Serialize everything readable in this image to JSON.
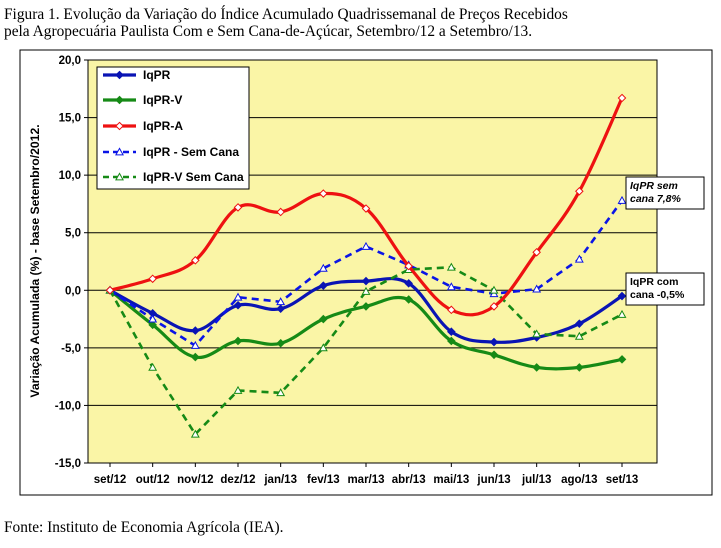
{
  "figure": {
    "caption_line1": "Figura 1. Evolução da Variação do Índice Acumulado Quadrissemanal de Preços Recebidos",
    "caption_line2": "pela Agropecuária Paulista Com e Sem Cana-de-Açúcar, Setembro/12 a Setembro/13.",
    "source": "Fonte: Instituto de Economia Agrícola (IEA)."
  },
  "chart_data": {
    "type": "line",
    "title": "",
    "xlabel": "",
    "ylabel": "Variação Acumulada (%) - base Setembro/2012.",
    "categories": [
      "set/12",
      "out/12",
      "nov/12",
      "dez/12",
      "jan/13",
      "fev/13",
      "mar/13",
      "abr/13",
      "mai/13",
      "jun/13",
      "jul/13",
      "ago/13",
      "set/13"
    ],
    "ylim": [
      -15,
      20
    ],
    "yticks": [
      "20,0",
      "15,0",
      "10,0",
      "5,0",
      "0,0",
      "-5,0",
      "-10,0",
      "-15,0"
    ],
    "grid": true,
    "legend_position": "top-left",
    "plot_background": "#FAF5A6",
    "series": [
      {
        "name": "IqPR",
        "color": "#0A14B4",
        "style": "solid",
        "marker": "diamond-filled",
        "values": [
          0.0,
          -2.0,
          -3.5,
          -1.3,
          -1.6,
          0.4,
          0.8,
          0.6,
          -3.6,
          -4.5,
          -4.1,
          -2.9,
          -0.5
        ]
      },
      {
        "name": "IqPR-V",
        "color": "#168A16",
        "style": "solid",
        "marker": "diamond-filled",
        "values": [
          0.0,
          -3.0,
          -5.8,
          -4.4,
          -4.6,
          -2.5,
          -1.4,
          -0.8,
          -4.4,
          -5.6,
          -6.7,
          -6.7,
          -6.0
        ]
      },
      {
        "name": "IqPR-A",
        "color": "#EE1111",
        "style": "solid",
        "marker": "diamond-open",
        "values": [
          0.0,
          1.0,
          2.6,
          7.2,
          6.8,
          8.4,
          7.1,
          2.1,
          -1.7,
          -1.4,
          3.3,
          8.6,
          16.7
        ]
      },
      {
        "name": "IqPR - Sem Cana",
        "color": "#0A14E6",
        "style": "dashed",
        "marker": "triangle-open",
        "values": [
          0.0,
          -2.5,
          -4.8,
          -0.6,
          -1.0,
          1.9,
          3.8,
          2.2,
          0.3,
          -0.3,
          0.1,
          2.7,
          7.8
        ]
      },
      {
        "name": "IqPR-V Sem Cana",
        "color": "#168A16",
        "style": "dashed",
        "marker": "triangle-open",
        "values": [
          0.0,
          -6.7,
          -12.5,
          -8.7,
          -8.9,
          -5.0,
          -0.1,
          1.8,
          2.0,
          0.0,
          -3.8,
          -4.0,
          -2.1
        ]
      }
    ],
    "annotations": [
      {
        "lines": [
          "IqPR sem",
          "cana 7,8%"
        ]
      },
      {
        "lines": [
          "IqPR com",
          "cana -0,5%"
        ]
      }
    ]
  }
}
